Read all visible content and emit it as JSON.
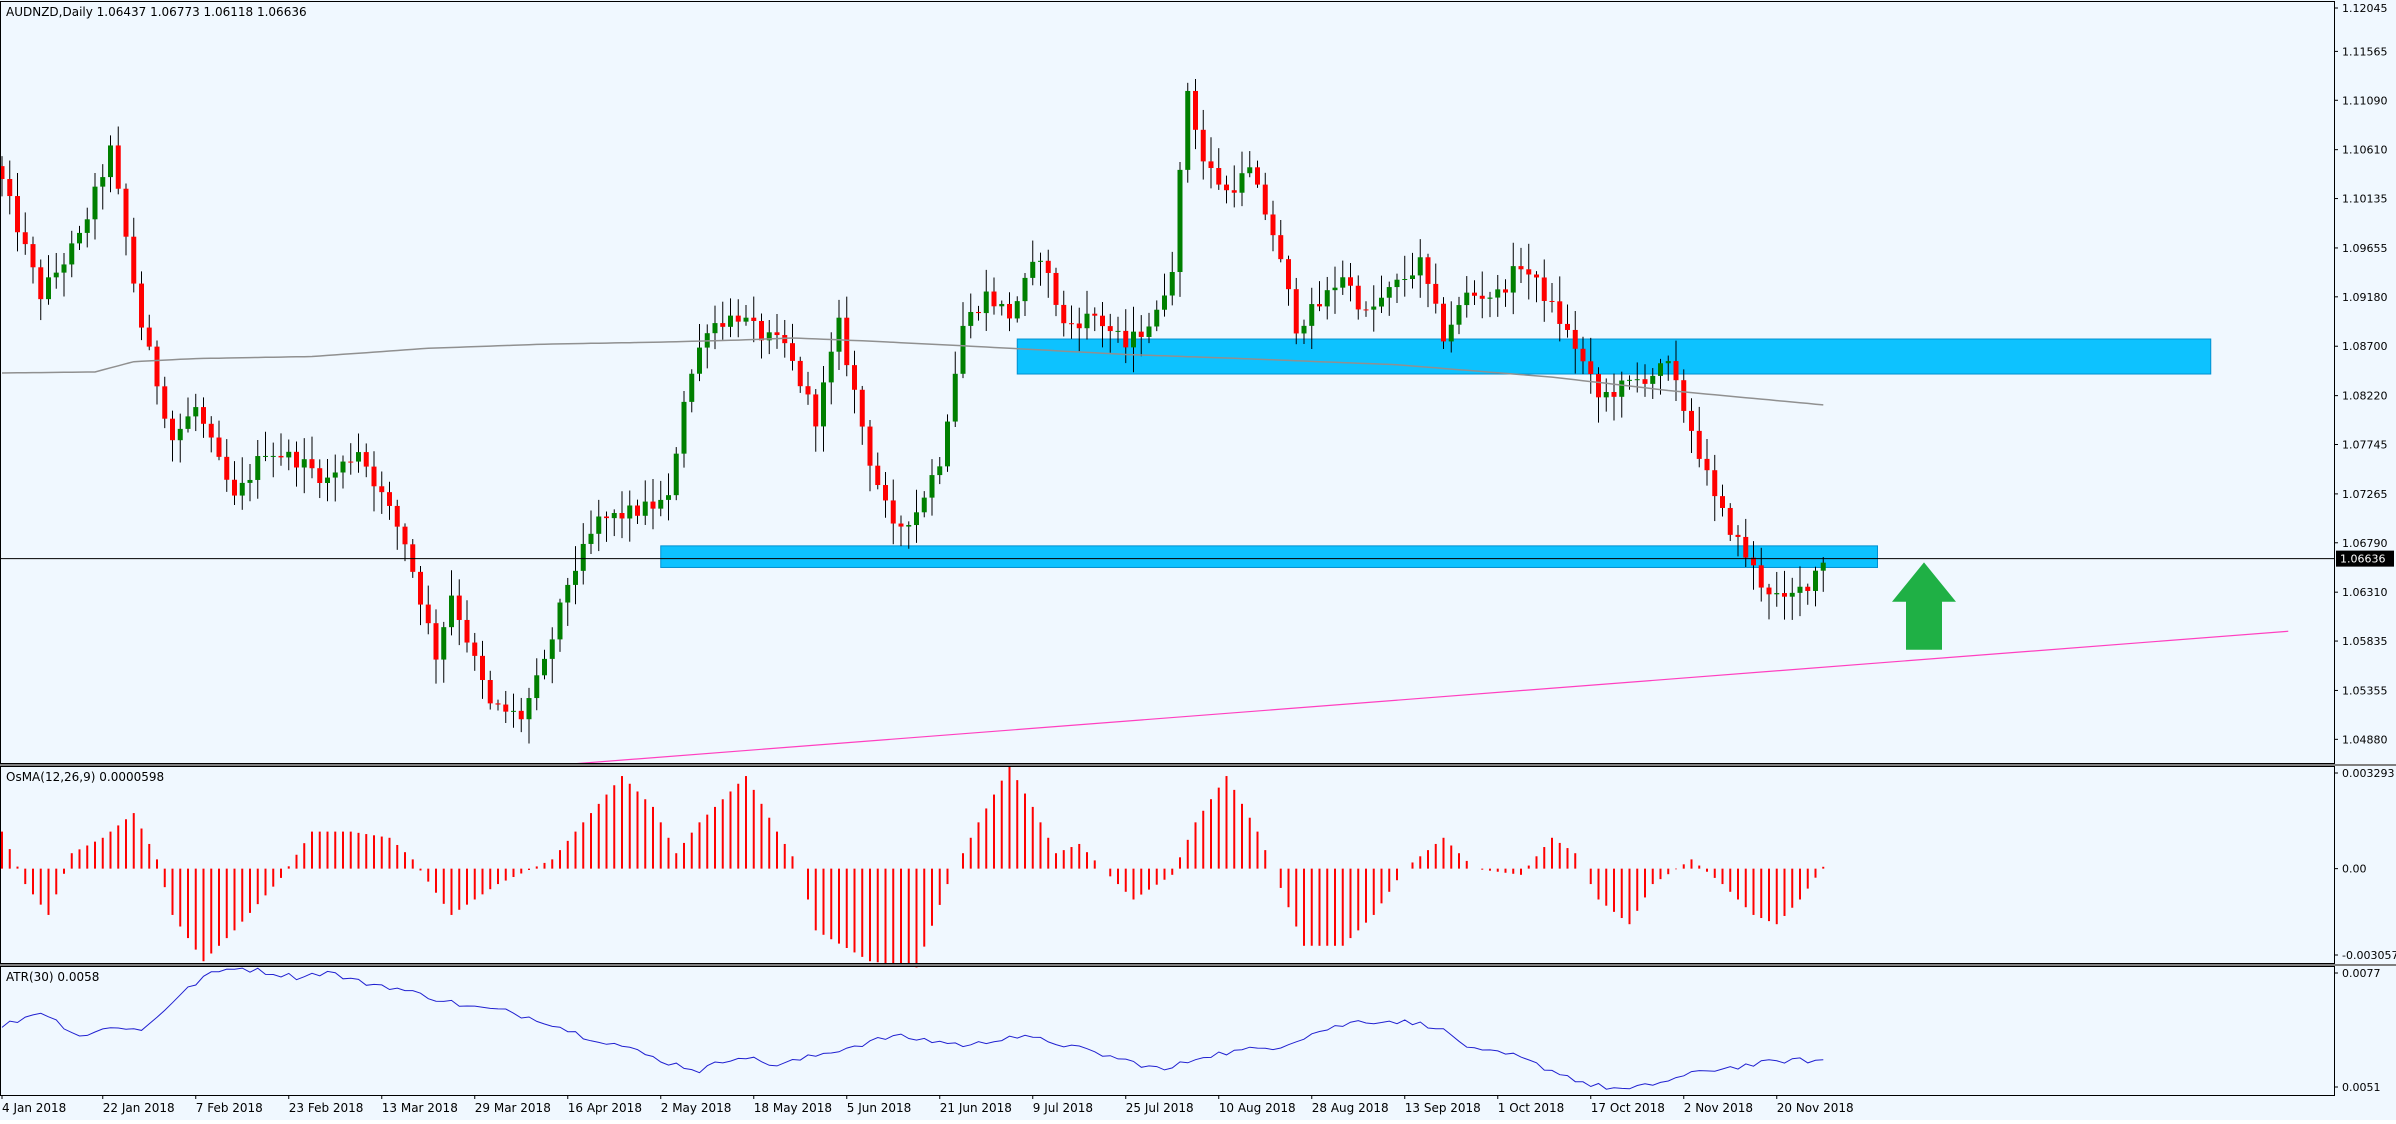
{
  "colors": {
    "background": "#f0f8ff",
    "border": "#000000",
    "bull": "#008000",
    "bear": "#ff0000",
    "wick": "#000000",
    "ma": "#909090",
    "zone": "#00bfff",
    "trendline": "#ff40c0",
    "price_line": "#000000",
    "arrow": "#1fb045",
    "osma": "#ff0000",
    "atr": "#2020d0",
    "price_box": "#000000",
    "text": "#000000"
  },
  "chart_data": [
    {
      "type": "candlestick",
      "header": "AUDNZD,Daily  1.06437 1.06773 1.06118 1.06636",
      "ylim": [
        1.0465,
        1.12045
      ],
      "y_ticks": [
        "1.12045",
        "1.11565",
        "1.11090",
        "1.10610",
        "1.10135",
        "1.09655",
        "1.09180",
        "1.08700",
        "1.08220",
        "1.07745",
        "1.07265",
        "1.06790",
        "1.06310",
        "1.05835",
        "1.05355",
        "1.04880"
      ],
      "current_price": "1.06636",
      "x_labels": [
        {
          "label": "4 Jan 2018",
          "index": 0
        },
        {
          "label": "22 Jan 2018",
          "index": 13
        },
        {
          "label": "7 Feb 2018",
          "index": 25
        },
        {
          "label": "23 Feb 2018",
          "index": 37
        },
        {
          "label": "13 Mar 2018",
          "index": 49
        },
        {
          "label": "29 Mar 2018",
          "index": 61
        },
        {
          "label": "16 Apr 2018",
          "index": 73
        },
        {
          "label": "2 May 2018",
          "index": 85
        },
        {
          "label": "18 May 2018",
          "index": 97
        },
        {
          "label": "5 Jun 2018",
          "index": 109
        },
        {
          "label": "21 Jun 2018",
          "index": 121
        },
        {
          "label": "9 Jul 2018",
          "index": 133
        },
        {
          "label": "25 Jul 2018",
          "index": 145
        },
        {
          "label": "10 Aug 2018",
          "index": 157
        },
        {
          "label": "28 Aug 2018",
          "index": 169
        },
        {
          "label": "13 Sep 2018",
          "index": 181
        },
        {
          "label": "1 Oct 2018",
          "index": 193
        },
        {
          "label": "17 Oct 2018",
          "index": 205
        },
        {
          "label": "2 Nov 2018",
          "index": 217
        },
        {
          "label": "20 Nov 2018",
          "index": 229
        }
      ],
      "close_anchors": [
        [
          0,
          1.103
        ],
        [
          5,
          1.092
        ],
        [
          10,
          1.0975
        ],
        [
          14,
          1.106
        ],
        [
          18,
          1.089
        ],
        [
          22,
          1.078
        ],
        [
          25,
          1.081
        ],
        [
          30,
          1.072
        ],
        [
          34,
          1.077
        ],
        [
          38,
          1.076
        ],
        [
          42,
          1.074
        ],
        [
          46,
          1.077
        ],
        [
          52,
          1.068
        ],
        [
          56,
          1.057
        ],
        [
          58,
          1.063
        ],
        [
          63,
          1.052
        ],
        [
          67,
          1.051
        ],
        [
          70,
          1.056
        ],
        [
          73,
          1.064
        ],
        [
          77,
          1.07
        ],
        [
          82,
          1.071
        ],
        [
          86,
          1.072
        ],
        [
          88,
          1.082
        ],
        [
          91,
          1.089
        ],
        [
          95,
          1.09
        ],
        [
          98,
          1.088
        ],
        [
          101,
          1.087
        ],
        [
          105,
          1.08
        ],
        [
          108,
          1.089
        ],
        [
          112,
          1.076
        ],
        [
          115,
          1.069
        ],
        [
          118,
          1.071
        ],
        [
          121,
          1.076
        ],
        [
          124,
          1.089
        ],
        [
          127,
          1.092
        ],
        [
          130,
          1.09
        ],
        [
          134,
          1.096
        ],
        [
          137,
          1.089
        ],
        [
          141,
          1.09
        ],
        [
          145,
          1.087
        ],
        [
          149,
          1.09
        ],
        [
          151,
          1.095
        ],
        [
          153,
          1.112
        ],
        [
          155,
          1.105
        ],
        [
          158,
          1.102
        ],
        [
          161,
          1.104
        ],
        [
          164,
          1.098
        ],
        [
          167,
          1.089
        ],
        [
          170,
          1.091
        ],
        [
          173,
          1.094
        ],
        [
          176,
          1.09
        ],
        [
          180,
          1.093
        ],
        [
          183,
          1.095
        ],
        [
          186,
          1.088
        ],
        [
          189,
          1.092
        ],
        [
          193,
          1.092
        ],
        [
          196,
          1.095
        ],
        [
          199,
          1.092
        ],
        [
          203,
          1.087
        ],
        [
          206,
          1.082
        ],
        [
          209,
          1.083
        ],
        [
          212,
          1.084
        ],
        [
          215,
          1.085
        ],
        [
          218,
          1.079
        ],
        [
          221,
          1.072
        ],
        [
          224,
          1.068
        ],
        [
          227,
          1.064
        ],
        [
          230,
          1.062
        ],
        [
          233,
          1.064
        ],
        [
          235,
          1.0664
        ]
      ],
      "ma_anchors": [
        [
          0,
          1.0844
        ],
        [
          12,
          1.0845
        ],
        [
          17,
          1.0855
        ],
        [
          25,
          1.0858
        ],
        [
          40,
          1.086
        ],
        [
          55,
          1.0868
        ],
        [
          70,
          1.0872
        ],
        [
          85,
          1.0874
        ],
        [
          95,
          1.0876
        ],
        [
          102,
          1.0878
        ],
        [
          112,
          1.0875
        ],
        [
          125,
          1.087
        ],
        [
          135,
          1.0866
        ],
        [
          145,
          1.0862
        ],
        [
          160,
          1.0858
        ],
        [
          180,
          1.0852
        ],
        [
          200,
          1.084
        ],
        [
          215,
          1.0827
        ],
        [
          235,
          1.0813
        ]
      ],
      "zones": [
        {
          "start_index": 131,
          "end_index": 285,
          "top": 1.0877,
          "bottom": 1.0843
        },
        {
          "start_index": 85,
          "end_index": 242,
          "top": 1.0676,
          "bottom": 1.0655
        }
      ],
      "trendline": {
        "start": [
          70,
          1.0462
        ],
        "end": [
          295,
          1.0593
        ]
      },
      "arrow": {
        "index": 248,
        "price_low": 1.0575,
        "price_high": 1.066,
        "direction": "up"
      }
    },
    {
      "type": "bar",
      "header": "OsMA(12,26,9) 0.0000598",
      "ylim": [
        -0.003057,
        0.003293
      ],
      "y_ticks": [
        "0.003293",
        "0.00",
        "-0.003057"
      ],
      "anchors": [
        [
          0,
          0.0012
        ],
        [
          3,
          -0.0005
        ],
        [
          6,
          -0.0015
        ],
        [
          9,
          0.0005
        ],
        [
          13,
          0.001
        ],
        [
          17,
          0.0018
        ],
        [
          20,
          0.0003
        ],
        [
          22,
          -0.0015
        ],
        [
          26,
          -0.003
        ],
        [
          30,
          -0.002
        ],
        [
          36,
          -0.0003
        ],
        [
          40,
          0.0012
        ],
        [
          45,
          0.0012
        ],
        [
          50,
          0.001
        ],
        [
          53,
          0.0003
        ],
        [
          58,
          -0.0015
        ],
        [
          64,
          -0.0005
        ],
        [
          71,
          0.0003
        ],
        [
          75,
          0.0015
        ],
        [
          80,
          0.003
        ],
        [
          84,
          0.002
        ],
        [
          87,
          0.0005
        ],
        [
          90,
          0.0015
        ],
        [
          96,
          0.003
        ],
        [
          100,
          0.0012
        ],
        [
          103,
          0.0
        ],
        [
          105,
          -0.002
        ],
        [
          112,
          -0.003
        ],
        [
          118,
          -0.0032
        ],
        [
          122,
          -0.0005
        ],
        [
          126,
          0.0015
        ],
        [
          130,
          0.0033
        ],
        [
          133,
          0.002
        ],
        [
          136,
          0.0005
        ],
        [
          139,
          0.0008
        ],
        [
          142,
          0.0
        ],
        [
          146,
          -0.001
        ],
        [
          151,
          -0.0002
        ],
        [
          154,
          0.0015
        ],
        [
          158,
          0.003
        ],
        [
          162,
          0.0012
        ],
        [
          164,
          0.0
        ],
        [
          168,
          -0.0025
        ],
        [
          173,
          -0.0025
        ],
        [
          177,
          -0.0015
        ],
        [
          181,
          0.0
        ],
        [
          186,
          0.001
        ],
        [
          190,
          0.0
        ],
        [
          196,
          -0.0002
        ],
        [
          200,
          0.001
        ],
        [
          203,
          0.0005
        ],
        [
          206,
          -0.001
        ],
        [
          210,
          -0.0018
        ],
        [
          213,
          -0.0005
        ],
        [
          218,
          0.0003
        ],
        [
          222,
          -0.0005
        ],
        [
          226,
          -0.0015
        ],
        [
          229,
          -0.0018
        ],
        [
          232,
          -0.001
        ],
        [
          235,
          6e-05
        ]
      ]
    },
    {
      "type": "line",
      "header": "ATR(30) 0.0058",
      "ylim": [
        0.0051,
        0.0077
      ],
      "y_ticks": [
        "0.0077",
        "0.0051"
      ],
      "anchors": [
        [
          0,
          0.0065
        ],
        [
          5,
          0.0068
        ],
        [
          10,
          0.0063
        ],
        [
          15,
          0.0065
        ],
        [
          18,
          0.0064
        ],
        [
          22,
          0.007
        ],
        [
          26,
          0.0075
        ],
        [
          30,
          0.0077
        ],
        [
          34,
          0.0076
        ],
        [
          38,
          0.0075
        ],
        [
          42,
          0.0076
        ],
        [
          46,
          0.0074
        ],
        [
          50,
          0.0073
        ],
        [
          55,
          0.0071
        ],
        [
          60,
          0.0069
        ],
        [
          65,
          0.0068
        ],
        [
          70,
          0.0066
        ],
        [
          75,
          0.0063
        ],
        [
          80,
          0.0061
        ],
        [
          85,
          0.0058
        ],
        [
          90,
          0.0056
        ],
        [
          95,
          0.0059
        ],
        [
          100,
          0.0057
        ],
        [
          105,
          0.0059
        ],
        [
          110,
          0.0061
        ],
        [
          115,
          0.0063
        ],
        [
          120,
          0.0062
        ],
        [
          125,
          0.0061
        ],
        [
          130,
          0.0063
        ],
        [
          135,
          0.0062
        ],
        [
          140,
          0.006
        ],
        [
          145,
          0.0058
        ],
        [
          150,
          0.0056
        ],
        [
          155,
          0.0059
        ],
        [
          160,
          0.006
        ],
        [
          165,
          0.0061
        ],
        [
          170,
          0.0064
        ],
        [
          175,
          0.0066
        ],
        [
          180,
          0.0066
        ],
        [
          185,
          0.0065
        ],
        [
          190,
          0.006
        ],
        [
          195,
          0.0059
        ],
        [
          200,
          0.0056
        ],
        [
          205,
          0.0053
        ],
        [
          210,
          0.0052
        ],
        [
          215,
          0.0054
        ],
        [
          220,
          0.0056
        ],
        [
          225,
          0.0057
        ],
        [
          230,
          0.0058
        ],
        [
          235,
          0.0058
        ]
      ]
    }
  ]
}
